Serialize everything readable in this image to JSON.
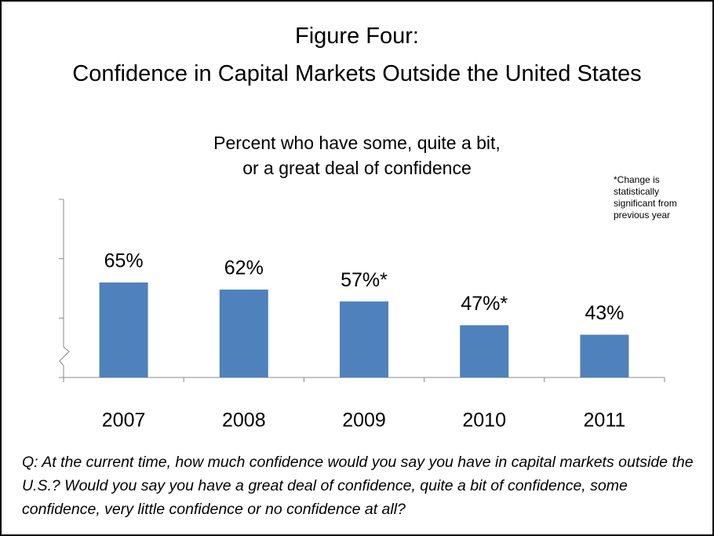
{
  "chart_data": {
    "type": "bar",
    "title": [
      "Figure Four:",
      "Confidence in Capital Markets Outside the United States"
    ],
    "subtitle": [
      "Percent who have some, quite a bit,",
      "or a great deal of confidence"
    ],
    "annotation": "*Change is statistically significant from previous year",
    "footnote": "Q: At the current time, how much confidence would you say you have in capital markets outside the U.S.?  Would you say you have a great deal of confidence, quite a bit of confidence, some confidence, very little confidence or no confidence at all?",
    "categories": [
      "2007",
      "2008",
      "2009",
      "2010",
      "2011"
    ],
    "values": [
      65,
      62,
      57,
      47,
      43
    ],
    "value_labels": [
      "65%",
      "62%",
      "57%*",
      "47%*",
      "43%"
    ],
    "color": "#4f81bd",
    "ylim": [
      25,
      100
    ],
    "yticks": [
      25,
      50,
      75,
      100
    ],
    "grid": false
  }
}
